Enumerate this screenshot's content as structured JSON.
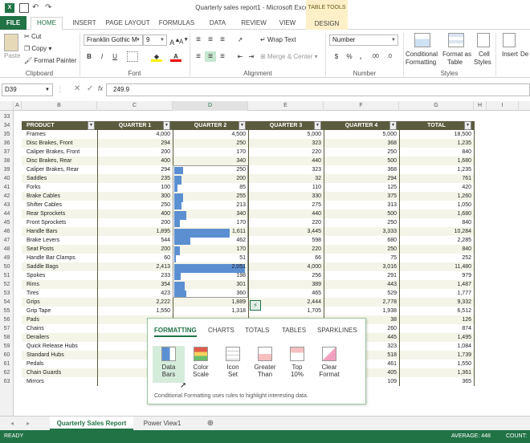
{
  "window": {
    "title": "Quarterly sales report1 - Microsoft Excel Preview",
    "context_tab_group": "TABLE TOOLS"
  },
  "tabs": [
    "FILE",
    "HOME",
    "INSERT",
    "PAGE LAYOUT",
    "FORMULAS",
    "DATA",
    "REVIEW",
    "VIEW",
    "DESIGN"
  ],
  "ribbon": {
    "clipboard": {
      "label": "Clipboard",
      "paste": "Paste",
      "cut": "Cut",
      "copy": "Copy",
      "format_painter": "Format Painter"
    },
    "font": {
      "label": "Font",
      "font_name": "Franklin Gothic M",
      "font_size": "9",
      "bold": "B",
      "italic": "I",
      "underline": "U"
    },
    "alignment": {
      "label": "Alignment",
      "wrap_text": "Wrap Text",
      "merge_center": "Merge & Center"
    },
    "number": {
      "label": "Number",
      "format": "Number",
      "currency": "$",
      "percent": "%",
      "comma": ","
    },
    "styles": {
      "label": "Styles",
      "conditional": "Conditional",
      "conditional2": "Formatting",
      "format_as": "Format as",
      "table": "Table",
      "cell": "Cell",
      "styles": "Styles"
    },
    "cells": {
      "insert": "Insert",
      "delete": "De"
    }
  },
  "formula_bar": {
    "name_box": "D39",
    "value": "249.9"
  },
  "columns": [
    "A",
    "B",
    "C",
    "D",
    "E",
    "F",
    "G",
    "H",
    "I"
  ],
  "table": {
    "headers": [
      "PRODUCT",
      "QUARTER 1",
      "QUARTER 2",
      "QUARTER 3",
      "QUARTER 4",
      "TOTAL"
    ],
    "first_row_number": 33,
    "rows": [
      [
        "Frames",
        "4,000",
        "4,500",
        "5,000",
        "5,000",
        "18,500"
      ],
      [
        "Disc Brakes, Front",
        "294",
        "250",
        "323",
        "368",
        "1,235"
      ],
      [
        "Caliper Brakes, Front",
        "200",
        "170",
        "220",
        "250",
        "840"
      ],
      [
        "Disc Brakes, Rear",
        "400",
        "340",
        "440",
        "500",
        "1,680"
      ],
      [
        "Caliper Brakes, Rear",
        "294",
        "250",
        "323",
        "368",
        "1,235"
      ],
      [
        "Saddles",
        "235",
        "200",
        "32",
        "294",
        "761"
      ],
      [
        "Forks",
        "100",
        "85",
        "110",
        "125",
        "420"
      ],
      [
        "Brake Cables",
        "300",
        "255",
        "330",
        "375",
        "1,260"
      ],
      [
        "Shifter Cables",
        "250",
        "213",
        "275",
        "313",
        "1,050"
      ],
      [
        "Rear Sprockets",
        "400",
        "340",
        "440",
        "500",
        "1,680"
      ],
      [
        "Front Sprockets",
        "200",
        "170",
        "220",
        "250",
        "840"
      ],
      [
        "Handle Bars",
        "1,895",
        "1,611",
        "3,445",
        "3,333",
        "10,284"
      ],
      [
        "Brake Levers",
        "544",
        "462",
        "598",
        "680",
        "2,285"
      ],
      [
        "Seat Posts",
        "200",
        "170",
        "220",
        "250",
        "840"
      ],
      [
        "Handle Bar Clamps",
        "60",
        "51",
        "66",
        "75",
        "252"
      ],
      [
        "Saddle Bags",
        "2,413",
        "2,051",
        "4,000",
        "3,016",
        "11,480"
      ],
      [
        "Spokes",
        "233",
        "198",
        "256",
        "291",
        "979"
      ],
      [
        "Rims",
        "354",
        "301",
        "389",
        "443",
        "1,487"
      ],
      [
        "Tires",
        "423",
        "360",
        "465",
        "529",
        "1,777"
      ],
      [
        "Grips",
        "2,222",
        "1,889",
        "2,444",
        "2,778",
        "9,332"
      ],
      [
        "Grip Tape",
        "1,550",
        "1,318",
        "1,705",
        "1,938",
        "6,512"
      ],
      [
        "Pads",
        "",
        "",
        "",
        "38",
        "126"
      ],
      [
        "Chains",
        "",
        "",
        "",
        "260",
        "874"
      ],
      [
        "Derailers",
        "",
        "",
        "",
        "445",
        "1,495"
      ],
      [
        "Quick Release Hubs",
        "",
        "",
        "",
        "323",
        "1,084"
      ],
      [
        "Standard Hubs",
        "",
        "",
        "",
        "518",
        "1,739"
      ],
      [
        "Pedals",
        "",
        "",
        "",
        "461",
        "1,550"
      ],
      [
        "Chain Guards",
        "",
        "",
        "",
        "405",
        "1,361"
      ],
      [
        "Mirrors",
        "",
        "",
        "",
        "109",
        "365"
      ]
    ],
    "q2_bar_max": 2051
  },
  "quick_analysis": {
    "tabs": [
      "FORMATTING",
      "CHARTS",
      "TOTALS",
      "TABLES",
      "SPARKLINES"
    ],
    "items": [
      {
        "line1": "Data",
        "line2": "Bars",
        "icon": "data-bars-icon"
      },
      {
        "line1": "Color",
        "line2": "Scale",
        "icon": "color-scale-icon"
      },
      {
        "line1": "Icon",
        "line2": "Set",
        "icon": "icon-set-icon"
      },
      {
        "line1": "Greater",
        "line2": "Than",
        "icon": "greater-than-icon"
      },
      {
        "line1": "Top",
        "line2": "10%",
        "icon": "top-10-icon"
      },
      {
        "line1": "Clear",
        "line2": "Format",
        "icon": "clear-format-icon"
      }
    ],
    "description": "Conditional Formatting uses rules to highlight interesting data."
  },
  "sheets": [
    "Quarterly Sales Report",
    "Power View1"
  ],
  "status": {
    "mode": "READY",
    "average": "AVERAGE: 448",
    "count": "COUNT:"
  },
  "colors": {
    "excel_green": "#217346",
    "table_header": "#5b5b3f",
    "data_bar": "#5b8fd1"
  }
}
